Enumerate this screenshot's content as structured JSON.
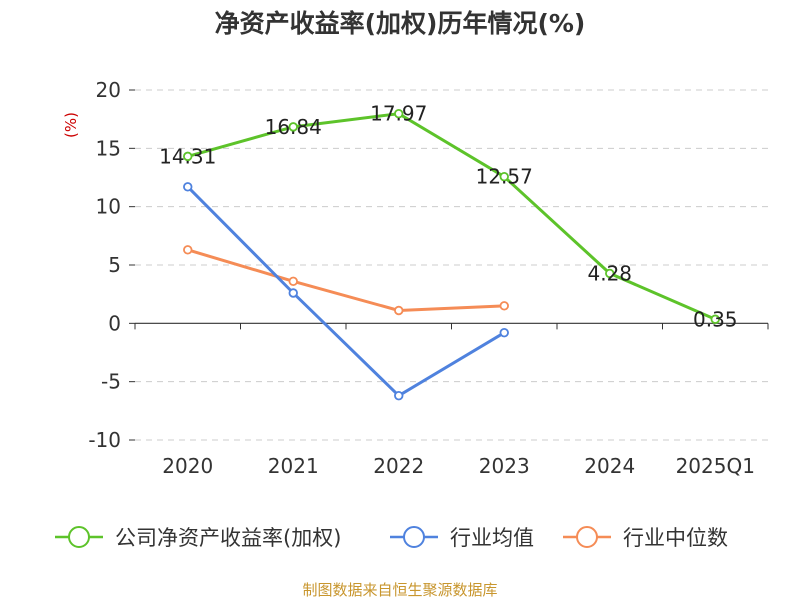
{
  "chart_data": {
    "type": "line",
    "title": "净资产收益率(加权)历年情况(%)",
    "ylabel": "(%)",
    "xlabel": "",
    "categories": [
      "2020",
      "2021",
      "2022",
      "2023",
      "2024",
      "2025Q1"
    ],
    "ylim": [
      -10,
      20
    ],
    "yticks": [
      20,
      15,
      10,
      5,
      0,
      -5,
      -10
    ],
    "grid": true,
    "legend_position": "bottom",
    "series": [
      {
        "name": "公司净资产收益率(加权)",
        "color": "#5dc32a",
        "values": [
          14.31,
          16.84,
          17.97,
          12.57,
          4.28,
          0.35
        ],
        "labels": [
          "14.31",
          "16.84",
          "17.97",
          "12.57",
          "4.28",
          "0.35"
        ]
      },
      {
        "name": "行业均值",
        "color": "#4f82de",
        "values": [
          11.7,
          2.6,
          -6.2,
          -0.8,
          null,
          null
        ]
      },
      {
        "name": "行业中位数",
        "color": "#f58c56",
        "values": [
          6.3,
          3.6,
          1.1,
          1.5,
          null,
          null
        ]
      }
    ]
  },
  "source_note": "制图数据来自恒生聚源数据库",
  "colors": {
    "unit_label": "#cc0000",
    "source_note": "#c8962e",
    "axis": "#333333",
    "grid": "#cccccc"
  }
}
